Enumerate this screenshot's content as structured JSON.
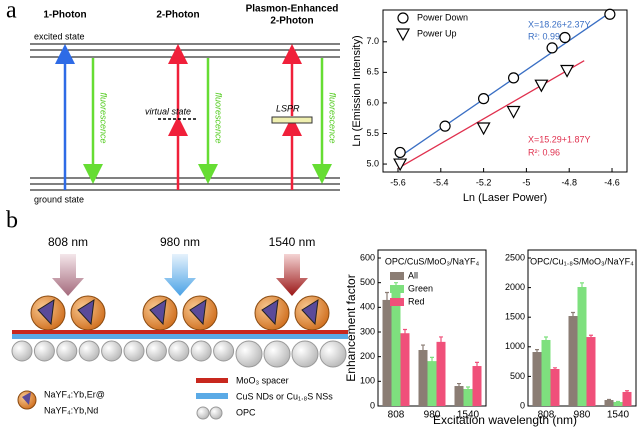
{
  "panel_labels": [
    "a",
    "b"
  ],
  "diagram": {
    "columns": [
      [
        "1-Photon"
      ],
      [
        "2-Photon"
      ],
      [
        "Plasmon-Enhanced",
        "2-Photon"
      ]
    ],
    "excited_state": "excited state",
    "ground_state": "ground state",
    "virtual_state": "virtual state",
    "lspr": "LSPR",
    "fluorescence": [
      "fluorescence",
      "fluorescence",
      "fluorescence"
    ]
  },
  "schematic": {
    "wavelengths": [
      "808 nm",
      "980 nm",
      "1540 nm"
    ],
    "legend": {
      "particle": [
        "NaYF₄:Yb,Er@",
        "NaYF₄:Yb,Nd"
      ],
      "spacer": "MoO₃ spacer",
      "plasmonic": "CuS NDs or Cu₁.₈S NSs",
      "opc": "OPC"
    }
  },
  "chart_data": [
    {
      "type": "scatter",
      "x_label": "Ln (Laser Power)",
      "y_label": "Ln (Emission Intensity)",
      "xlim": [
        -5.67,
        -4.53
      ],
      "ylim": [
        4.87,
        7.52
      ],
      "xticks": [
        -5.6,
        -5.4,
        -5.2,
        -5.0,
        -4.8,
        -4.6
      ],
      "yticks": [
        {
          "value": 5,
          "label": "5.0"
        },
        5.5,
        {
          "value": 6,
          "label": "6.0"
        },
        6.5,
        {
          "value": 7,
          "label": "7.0"
        }
      ],
      "legend": "upper left",
      "series": [
        {
          "name": "Power Down",
          "color": "#000000",
          "marker": "circle",
          "x": [
            -5.59,
            -5.38,
            -5.2,
            -5.06,
            -4.88,
            -4.82,
            -4.61
          ],
          "values": [
            5.19,
            5.62,
            6.07,
            6.41,
            6.9,
            7.07,
            7.45
          ]
        },
        {
          "name": "Power Up",
          "color": "#000000",
          "marker": "triangle-down",
          "x": [
            -5.59,
            -5.2,
            -5.06,
            -4.93,
            -4.81
          ],
          "values": [
            5.0,
            5.59,
            5.86,
            6.29,
            6.53
          ]
        }
      ],
      "fit_lines": [
        {
          "color": "#3a6fc4",
          "x": [
            -5.6,
            -4.6
          ],
          "values": [
            5.1,
            7.5
          ]
        },
        {
          "color": "#e0304e",
          "x": [
            -5.6,
            -4.73
          ],
          "values": [
            4.93,
            6.69
          ]
        }
      ],
      "annotations": [
        {
          "text": "X=18.26+2.37Y",
          "color": "#3a6fc4"
        },
        {
          "text": "R²: 0.99",
          "color": "#3a6fc4"
        },
        {
          "text": "X=15.29+1.87Y",
          "color": "#e0304e"
        },
        {
          "text": "R²: 0.96",
          "color": "#e0304e"
        }
      ]
    },
    {
      "type": "bar",
      "title": "OPC/CuS/MoO₃/NaYF₄",
      "y_label": "Enhancement factor",
      "x_label": "Excitation wavelength (nm)",
      "categories": [
        "808",
        "980",
        "1540"
      ],
      "ylim": [
        0,
        600
      ],
      "yticks": [
        0,
        100,
        200,
        300,
        400,
        500,
        600
      ],
      "legend": "upper left",
      "series": [
        {
          "name": "All",
          "color": "#8b7d74",
          "values": [
            430,
            227,
            81
          ],
          "errors": [
            30,
            20,
            10
          ]
        },
        {
          "name": "Green",
          "color": "#7ee07e",
          "values": [
            470,
            182,
            69
          ],
          "errors": [
            30,
            15,
            8
          ]
        },
        {
          "name": "Red",
          "color": "#f0507a",
          "values": [
            295,
            260,
            162
          ],
          "errors": [
            15,
            20,
            15
          ]
        }
      ]
    },
    {
      "type": "bar",
      "title": "OPC/Cu₁.₈S/MoO₃/NaYF₄",
      "categories": [
        "808",
        "980",
        "1540"
      ],
      "ylim": [
        0,
        2500
      ],
      "yticks": [
        0,
        500,
        1000,
        1500,
        2000,
        2500
      ],
      "series": [
        {
          "color": "#8b7d74",
          "values": [
            912,
            1520,
            101
          ],
          "errors": [
            40,
            60,
            10
          ]
        },
        {
          "color": "#7ee07e",
          "values": [
            1115,
            2010,
            68
          ],
          "errors": [
            50,
            70,
            8
          ]
        },
        {
          "color": "#f0507a",
          "values": [
            625,
            1165,
            237
          ],
          "errors": [
            20,
            30,
            20
          ]
        }
      ]
    }
  ]
}
